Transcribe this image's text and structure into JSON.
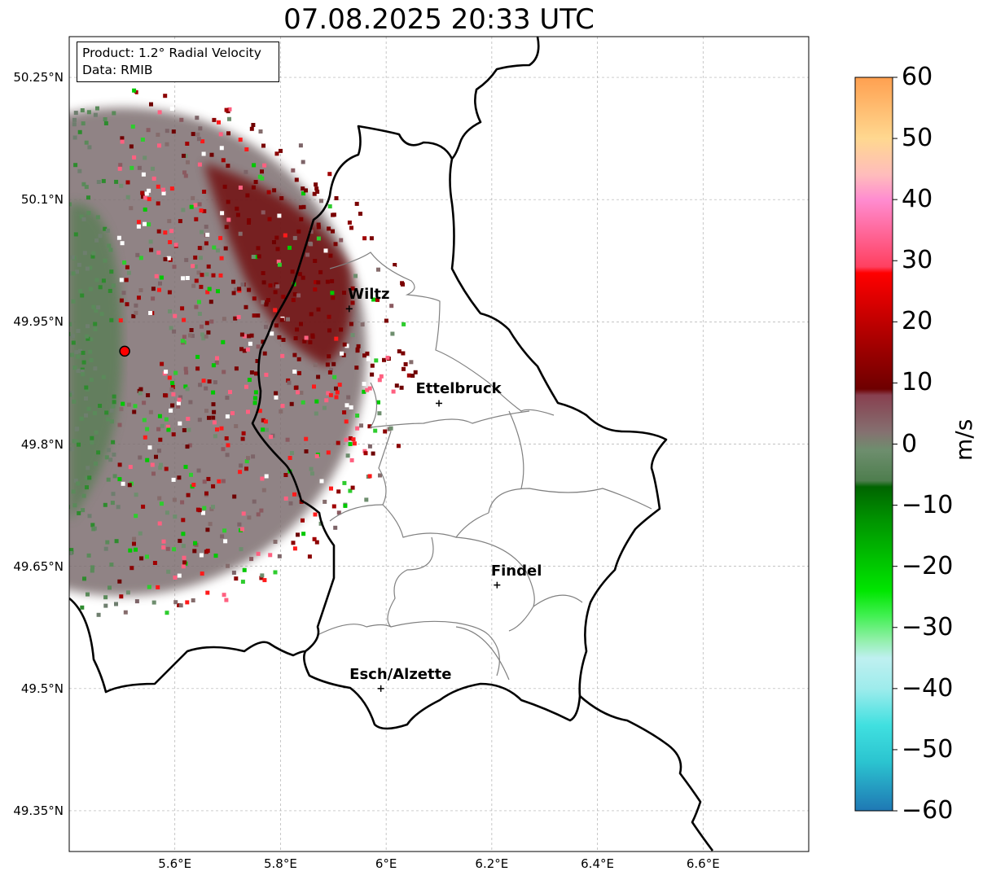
{
  "title": "07.08.2025 20:33 UTC",
  "info": {
    "product": "Product: 1.2° Radial Velocity",
    "data_source": "Data: RMIB"
  },
  "map": {
    "lon_range": [
      5.4,
      6.8
    ],
    "lat_range": [
      49.3,
      50.3
    ],
    "y_ticks": [
      {
        "lat": 50.25,
        "label": "50.25°N"
      },
      {
        "lat": 50.1,
        "label": "50.1°N"
      },
      {
        "lat": 49.95,
        "label": "49.95°N"
      },
      {
        "lat": 49.8,
        "label": "49.8°N"
      },
      {
        "lat": 49.65,
        "label": "49.65°N"
      },
      {
        "lat": 49.5,
        "label": "49.5°N"
      },
      {
        "lat": 49.35,
        "label": "49.35°N"
      }
    ],
    "x_ticks": [
      {
        "lon": 5.6,
        "label": "5.6°E"
      },
      {
        "lon": 5.8,
        "label": "5.8°E"
      },
      {
        "lon": 6.0,
        "label": "6°E"
      },
      {
        "lon": 6.2,
        "label": "6.2°E"
      },
      {
        "lon": 6.4,
        "label": "6.4°E"
      },
      {
        "lon": 6.6,
        "label": "6.6°E"
      }
    ],
    "radar_site": {
      "lon": 5.505,
      "lat": 49.914
    },
    "cities": [
      {
        "name": "Wiltz",
        "lon": 5.93,
        "lat": 49.966
      },
      {
        "name": "Ettelbruck",
        "lon": 6.1,
        "lat": 49.85
      },
      {
        "name": "Findel",
        "lon": 6.21,
        "lat": 49.627
      },
      {
        "name": "Esch/Alzette",
        "lon": 5.99,
        "lat": 49.5
      }
    ]
  },
  "colorbar": {
    "label": "m/s",
    "min": -60,
    "max": 60,
    "ticks": [
      "60",
      "50",
      "40",
      "30",
      "20",
      "10",
      "0",
      "−10",
      "−20",
      "−30",
      "−40",
      "−50",
      "−60"
    ],
    "stops": [
      {
        "v": -60,
        "c": "#1f78b4"
      },
      {
        "v": -52,
        "c": "#2bc4d0"
      },
      {
        "v": -46,
        "c": "#40e0e0"
      },
      {
        "v": -40,
        "c": "#9eecec"
      },
      {
        "v": -35,
        "c": "#bff0f0"
      },
      {
        "v": -32,
        "c": "#90f0a8"
      },
      {
        "v": -28,
        "c": "#40f050"
      },
      {
        "v": -24,
        "c": "#00e600"
      },
      {
        "v": -12,
        "c": "#009000"
      },
      {
        "v": -7,
        "c": "#006400"
      },
      {
        "v": -6,
        "c": "#4e7e4e"
      },
      {
        "v": -1,
        "c": "#6e8e6e"
      },
      {
        "v": 2,
        "c": "#857070"
      },
      {
        "v": 8,
        "c": "#884050"
      },
      {
        "v": 9,
        "c": "#6e0000"
      },
      {
        "v": 18,
        "c": "#b00000"
      },
      {
        "v": 28,
        "c": "#ff0000"
      },
      {
        "v": 29,
        "c": "#ff4060"
      },
      {
        "v": 40,
        "c": "#ff8cd0"
      },
      {
        "v": 44,
        "c": "#ffbcbc"
      },
      {
        "v": 50,
        "c": "#ffd890"
      },
      {
        "v": 60,
        "c": "#ffa050"
      }
    ]
  }
}
